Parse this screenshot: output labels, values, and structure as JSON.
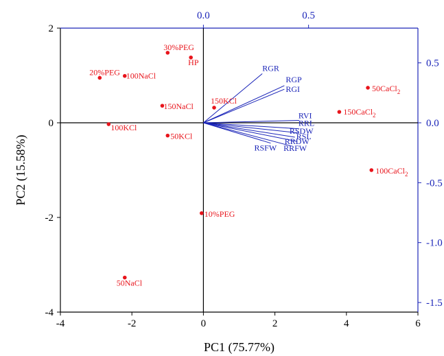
{
  "chart_data": {
    "type": "scatter",
    "subtype": "pca-biplot",
    "title": "",
    "xlabel": "PC1 (75.77%)",
    "ylabel": "PC2 (15.58%)",
    "xlim": [
      -4,
      6
    ],
    "ylim": [
      -4,
      2
    ],
    "x_ticks": [
      -4,
      -2,
      0,
      2,
      4,
      6
    ],
    "y_ticks": [
      -4,
      -2,
      0,
      2
    ],
    "secondary_x_ticks": [
      0.0,
      0.5
    ],
    "secondary_y_ticks": [
      0.5,
      0.0,
      -0.5,
      -1.0,
      -1.5
    ],
    "secondary_xlim": [
      -0.68,
      1.02
    ],
    "secondary_ylim": [
      -1.58,
      0.79
    ],
    "grid": false,
    "colors": {
      "scores": "#e8141b",
      "loadings": "#1a24b8",
      "axes": "#000000",
      "secondary_axes": "#1a24b8"
    },
    "scores": [
      {
        "label": "30%PEG",
        "x": -1.0,
        "y": 1.48
      },
      {
        "label": "HP",
        "x": -0.35,
        "y": 1.38
      },
      {
        "label": "20%PEG",
        "x": -2.9,
        "y": 0.95
      },
      {
        "label": "100NaCl",
        "x": -2.2,
        "y": 0.99
      },
      {
        "label": "150KCl",
        "x": 0.3,
        "y": 0.32
      },
      {
        "label": "150NaCl",
        "x": -1.15,
        "y": 0.36
      },
      {
        "label": "100KCl",
        "x": -2.65,
        "y": -0.03
      },
      {
        "label": "50KCl",
        "x": -1.0,
        "y": -0.27
      },
      {
        "label": "10%PEG",
        "x": -0.05,
        "y": -1.91
      },
      {
        "label": "50NaCl",
        "x": -2.2,
        "y": -3.27
      },
      {
        "label": "50CaCl",
        "subscript": "2",
        "x": 4.6,
        "y": 0.74
      },
      {
        "label": "150CaCl",
        "subscript": "2",
        "x": 3.8,
        "y": 0.23
      },
      {
        "label": "100CaCl",
        "subscript": "2",
        "x": 4.7,
        "y": -1.0
      }
    ],
    "loadings": [
      {
        "label": "RGR",
        "x": 0.28,
        "y": 0.41
      },
      {
        "label": "RGP",
        "x": 0.385,
        "y": 0.31
      },
      {
        "label": "RGI",
        "x": 0.385,
        "y": 0.28
      },
      {
        "label": "RVI",
        "x": 0.455,
        "y": 0.02
      },
      {
        "label": "RRL",
        "x": 0.455,
        "y": -0.05
      },
      {
        "label": "RSDW",
        "x": 0.455,
        "y": -0.085
      },
      {
        "label": "RSL",
        "x": 0.435,
        "y": -0.12
      },
      {
        "label": "RRDW",
        "x": 0.445,
        "y": -0.155
      },
      {
        "label": "RRFW",
        "x": 0.42,
        "y": -0.195
      },
      {
        "label": "RSFW",
        "x": 0.32,
        "y": -0.17
      }
    ]
  }
}
